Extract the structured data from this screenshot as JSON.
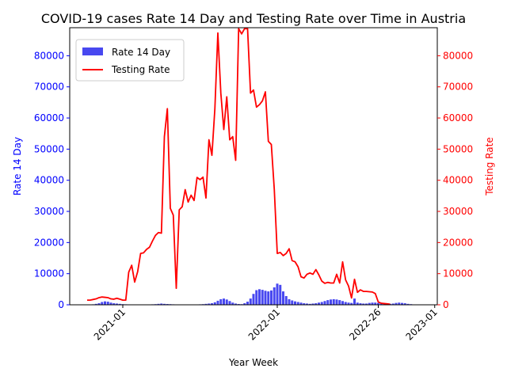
{
  "chart_data": {
    "type": "bar+line",
    "title": "COVID-19 cases Rate 14 Day and Testing Rate over Time in Austria",
    "xlabel": "Year Week",
    "ylabel_left": "Rate 14 Day",
    "ylabel_right": "Testing Rate",
    "ylim_left": [
      0,
      89000
    ],
    "ylim_right": [
      0,
      89000
    ],
    "x_ticks": [
      {
        "index": 12,
        "label": "2021-01"
      },
      {
        "index": 64,
        "label": "2022-01"
      },
      {
        "index": 98,
        "label": "2022-26"
      },
      {
        "index": 117,
        "label": "2023-01"
      }
    ],
    "y_ticks_left": [
      0,
      10000,
      20000,
      30000,
      40000,
      50000,
      60000,
      70000,
      80000
    ],
    "y_ticks_right": [
      0,
      10000,
      20000,
      30000,
      40000,
      50000,
      60000,
      70000,
      80000
    ],
    "legend": {
      "position": "top-left",
      "entries": [
        "Rate 14 Day",
        "Testing Rate"
      ]
    },
    "colors": {
      "bar": "#4848f0",
      "line": "#ff0000",
      "left_axis": "#0000ff",
      "right_axis": "#ff0000"
    },
    "series": [
      {
        "name": "Rate 14 Day",
        "type": "bar",
        "values": [
          50,
          100,
          150,
          300,
          500,
          900,
          1100,
          1000,
          700,
          500,
          400,
          300,
          200,
          150,
          100,
          100,
          100,
          100,
          100,
          100,
          100,
          100,
          150,
          200,
          300,
          400,
          300,
          250,
          200,
          150,
          100,
          100,
          100,
          100,
          100,
          100,
          100,
          100,
          150,
          200,
          300,
          400,
          500,
          800,
          1300,
          1800,
          2000,
          1700,
          1200,
          700,
          400,
          250,
          200,
          500,
          1000,
          2000,
          3500,
          4700,
          5000,
          4800,
          4500,
          4300,
          4600,
          5600,
          6800,
          6400,
          4300,
          2800,
          1800,
          1400,
          1100,
          900,
          700,
          500,
          400,
          300,
          400,
          500,
          700,
          900,
          1200,
          1500,
          1700,
          1800,
          1700,
          1500,
          1200,
          900,
          700,
          600,
          2000,
          700,
          500,
          400,
          400,
          600,
          700,
          700,
          600,
          500,
          400,
          300,
          300,
          400,
          600,
          700,
          600,
          500,
          300,
          200,
          100,
          100,
          50
        ]
      },
      {
        "name": "Testing Rate",
        "type": "line",
        "values": [
          1500,
          1500,
          1700,
          1900,
          2300,
          2500,
          2400,
          2300,
          1900,
          1800,
          2100,
          1800,
          1500,
          1500,
          10500,
          12700,
          7300,
          10600,
          16500,
          16700,
          17800,
          18500,
          20500,
          22300,
          23200,
          23000,
          54000,
          63000,
          31000,
          28800,
          5300,
          30500,
          31500,
          37000,
          33000,
          35200,
          33500,
          40900,
          40200,
          41000,
          34300,
          53000,
          48000,
          63000,
          87300,
          68000,
          56300,
          66800,
          53000,
          54000,
          46400,
          88700,
          87000,
          88700,
          88700,
          68000,
          69000,
          63500,
          64300,
          65500,
          68400,
          52500,
          51500,
          37000,
          16500,
          16800,
          15800,
          16500,
          18000,
          14200,
          13800,
          12200,
          9000,
          8600,
          9800,
          10200,
          9800,
          11300,
          9600,
          7600,
          6900,
          7200,
          7000,
          7000,
          9800,
          7000,
          13800,
          8000,
          6000,
          2200,
          8200,
          4000,
          4800,
          4300,
          4300,
          4200,
          4100,
          3600,
          900,
          500,
          400,
          300,
          200
        ]
      }
    ]
  }
}
